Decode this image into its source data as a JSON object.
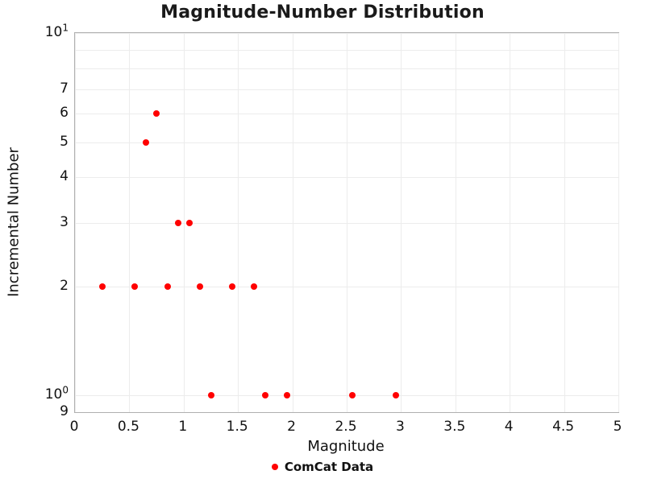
{
  "chart_data": {
    "type": "scatter",
    "title": "Magnitude-Number Distribution",
    "xlabel": "Magnitude",
    "ylabel": "Incremental Number",
    "xscale": "linear",
    "yscale": "log",
    "xlim": [
      0,
      5
    ],
    "ylim": [
      0.9,
      10
    ],
    "grid": true,
    "x_ticks": [
      {
        "value": 0,
        "label": "0"
      },
      {
        "value": 0.5,
        "label": "0.5"
      },
      {
        "value": 1,
        "label": "1"
      },
      {
        "value": 1.5,
        "label": "1.5"
      },
      {
        "value": 2,
        "label": "2"
      },
      {
        "value": 2.5,
        "label": "2.5"
      },
      {
        "value": 3,
        "label": "3"
      },
      {
        "value": 3.5,
        "label": "3.5"
      },
      {
        "value": 4,
        "label": "4"
      },
      {
        "value": 4.5,
        "label": "4.5"
      },
      {
        "value": 5,
        "label": "5"
      }
    ],
    "y_ticks": [
      {
        "value": 10,
        "label": "10^1"
      },
      {
        "value": 7,
        "label": "7"
      },
      {
        "value": 6,
        "label": "6"
      },
      {
        "value": 5,
        "label": "5"
      },
      {
        "value": 4,
        "label": "4"
      },
      {
        "value": 3,
        "label": "3"
      },
      {
        "value": 2,
        "label": "2"
      },
      {
        "value": 1,
        "label": "10^0"
      },
      {
        "value": 0.9,
        "label": "9"
      }
    ],
    "y_gridline_values": [
      1,
      2,
      3,
      4,
      5,
      6,
      7,
      8,
      9,
      10
    ],
    "legend": {
      "position": "below",
      "entries": [
        {
          "label": "ComCat Data",
          "color": "#ff0000",
          "marker": "circle"
        }
      ]
    },
    "series": [
      {
        "name": "ComCat Data",
        "color": "#ff0000",
        "marker": "circle",
        "points": [
          {
            "x": 0.25,
            "y": 2
          },
          {
            "x": 0.55,
            "y": 2
          },
          {
            "x": 0.65,
            "y": 5
          },
          {
            "x": 0.75,
            "y": 6
          },
          {
            "x": 0.85,
            "y": 2
          },
          {
            "x": 0.95,
            "y": 3
          },
          {
            "x": 1.05,
            "y": 3
          },
          {
            "x": 1.15,
            "y": 2
          },
          {
            "x": 1.25,
            "y": 1
          },
          {
            "x": 1.45,
            "y": 2
          },
          {
            "x": 1.65,
            "y": 2
          },
          {
            "x": 1.75,
            "y": 1
          },
          {
            "x": 1.95,
            "y": 1
          },
          {
            "x": 2.55,
            "y": 1
          },
          {
            "x": 2.95,
            "y": 1
          }
        ]
      }
    ]
  },
  "colors": {
    "point": "#ff0000",
    "grid": "#ececec",
    "frame": "#b0b0b0",
    "text": "#111111",
    "title": "#1a1a1a"
  }
}
